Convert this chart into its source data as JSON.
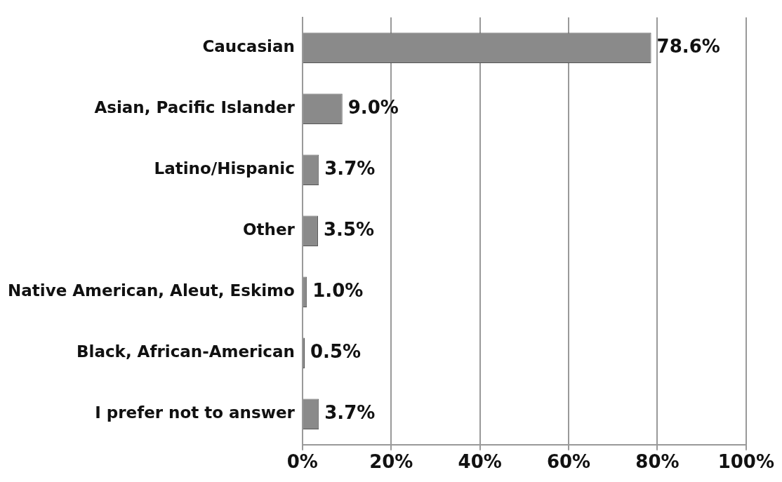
{
  "chart_data": {
    "type": "bar",
    "orientation": "horizontal",
    "categories": [
      "Caucasian",
      "Asian, Pacific Islander",
      "Latino/Hispanic",
      "Other",
      "Native American, Aleut, Eskimo",
      "Black, African-American",
      "I prefer not to answer"
    ],
    "values": [
      78.6,
      9.0,
      3.7,
      3.5,
      1.0,
      0.5,
      3.7
    ],
    "value_labels": [
      "78.6%",
      "9.0%",
      "3.7%",
      "3.5%",
      "1.0%",
      "0.5%",
      "3.7%"
    ],
    "color": "#8a8a8a",
    "xlim": [
      0,
      100
    ],
    "xticks": [
      {
        "value": 0,
        "label": "0%"
      },
      {
        "value": 20,
        "label": "20%"
      },
      {
        "value": 40,
        "label": "40%"
      },
      {
        "value": 60,
        "label": "60%"
      },
      {
        "value": 80,
        "label": "80%"
      },
      {
        "value": 100,
        "label": "100%"
      }
    ],
    "grid": "x",
    "legend": false
  }
}
